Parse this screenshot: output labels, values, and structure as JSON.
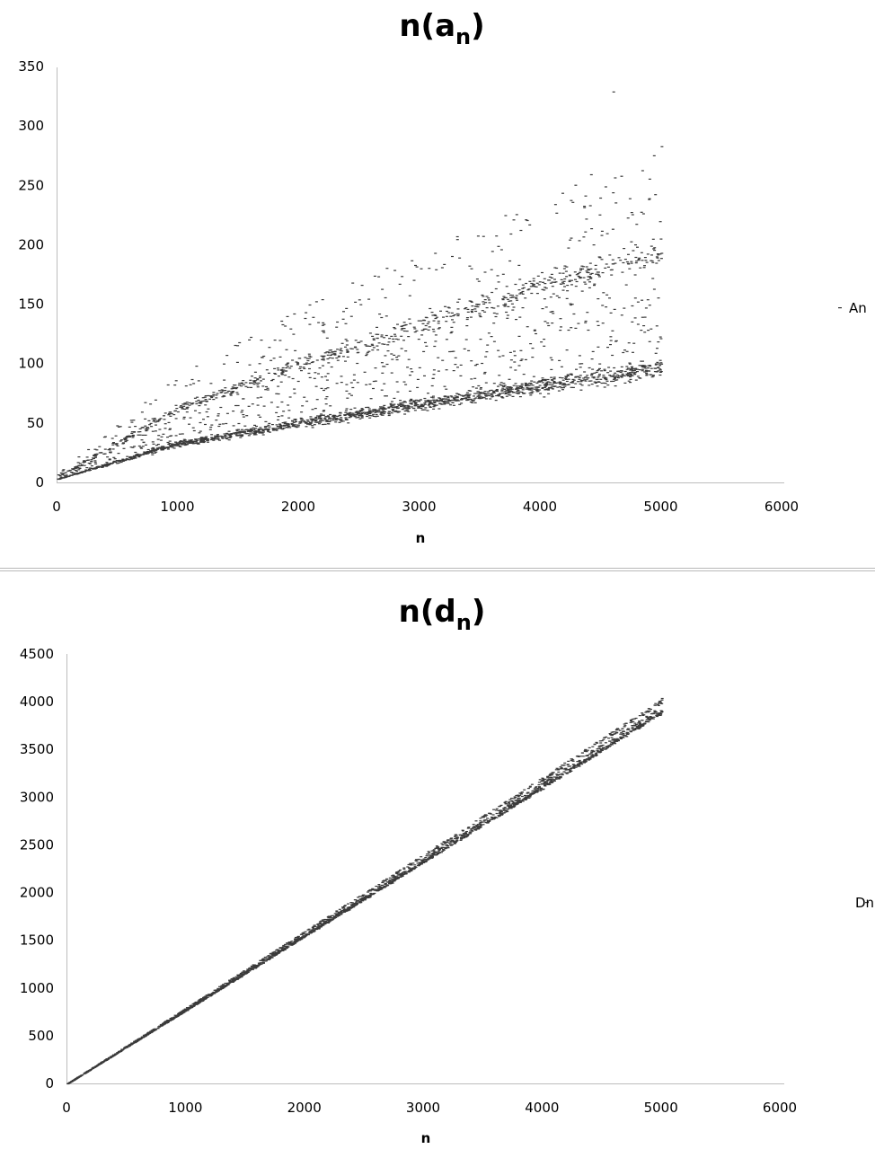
{
  "chart_data": [
    {
      "type": "scatter",
      "title": "n(a",
      "title_subscript": "n",
      "title_close": ")",
      "xlabel": "n",
      "ylabel": "",
      "xlim": [
        0,
        6000
      ],
      "ylim": [
        0,
        350
      ],
      "x_ticks": [
        "0",
        "1000",
        "2000",
        "3000",
        "4000",
        "5000",
        "6000"
      ],
      "y_ticks": [
        "0",
        "50",
        "100",
        "150",
        "200",
        "250",
        "300",
        "350"
      ],
      "grid": false,
      "legend_position": "right",
      "series": [
        {
          "name": "An",
          "marker": "short dash",
          "point_count": 5000,
          "x_range": [
            1,
            5000
          ],
          "bands": [
            {
              "label": "lower band",
              "points": [
                [
                  0,
                  3
                ],
                [
                  1000,
                  33
                ],
                [
                  2000,
                  50
                ],
                [
                  3000,
                  66
                ],
                [
                  4000,
                  82
                ],
                [
                  5000,
                  97
                ]
              ]
            },
            {
              "label": "upper band",
              "points": [
                [
                  0,
                  5
                ],
                [
                  1000,
                  63
                ],
                [
                  2000,
                  100
                ],
                [
                  3000,
                  133
                ],
                [
                  4000,
                  165
                ],
                [
                  5000,
                  195
                ]
              ]
            }
          ],
          "max_point": [
            4600,
            329
          ]
        }
      ]
    },
    {
      "type": "scatter",
      "title": "n(d",
      "title_subscript": "n",
      "title_close": ")",
      "xlabel": "n",
      "ylabel": "",
      "xlim": [
        0,
        6000
      ],
      "ylim": [
        0,
        4500
      ],
      "x_ticks": [
        "0",
        "1000",
        "2000",
        "3000",
        "4000",
        "5000",
        "6000"
      ],
      "y_ticks": [
        "0",
        "500",
        "1000",
        "1500",
        "2000",
        "2500",
        "3000",
        "3500",
        "4000",
        "4500"
      ],
      "grid": false,
      "legend_position": "right",
      "series": [
        {
          "name": "Dn",
          "marker": "short dash",
          "point_count": 5000,
          "x_range": [
            1,
            5000
          ],
          "trend": [
            [
              0,
              0
            ],
            [
              1000,
              770
            ],
            [
              2000,
              1550
            ],
            [
              3000,
              2330
            ],
            [
              4000,
              3110
            ],
            [
              5000,
              3900
            ]
          ],
          "max_point": [
            5000,
            4040
          ]
        }
      ]
    }
  ]
}
